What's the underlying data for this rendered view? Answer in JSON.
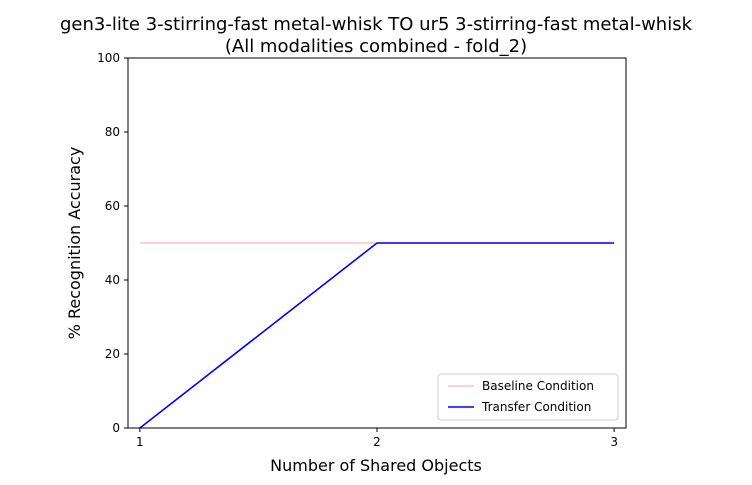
{
  "chart_data": {
    "type": "line",
    "title_line1": "gen3-lite 3-stirring-fast metal-whisk TO ur5 3-stirring-fast metal-whisk",
    "title_line2": "(All modalities combined - fold_2)",
    "xlabel": "Number of Shared Objects",
    "ylabel": "% Recognition Accuracy",
    "x": [
      1,
      2,
      3
    ],
    "xlim": [
      0.95,
      3.05
    ],
    "ylim": [
      0,
      100
    ],
    "xticks": [
      1,
      2,
      3
    ],
    "yticks": [
      0,
      20,
      40,
      60,
      80,
      100
    ],
    "grid": false,
    "legend_position": "lower-right",
    "series": [
      {
        "name": "Baseline Condition",
        "color": "#ffc0cb",
        "values": [
          50,
          50,
          50
        ]
      },
      {
        "name": "Transfer Condition",
        "color": "#0000ff",
        "values": [
          0,
          50,
          50
        ]
      }
    ]
  }
}
